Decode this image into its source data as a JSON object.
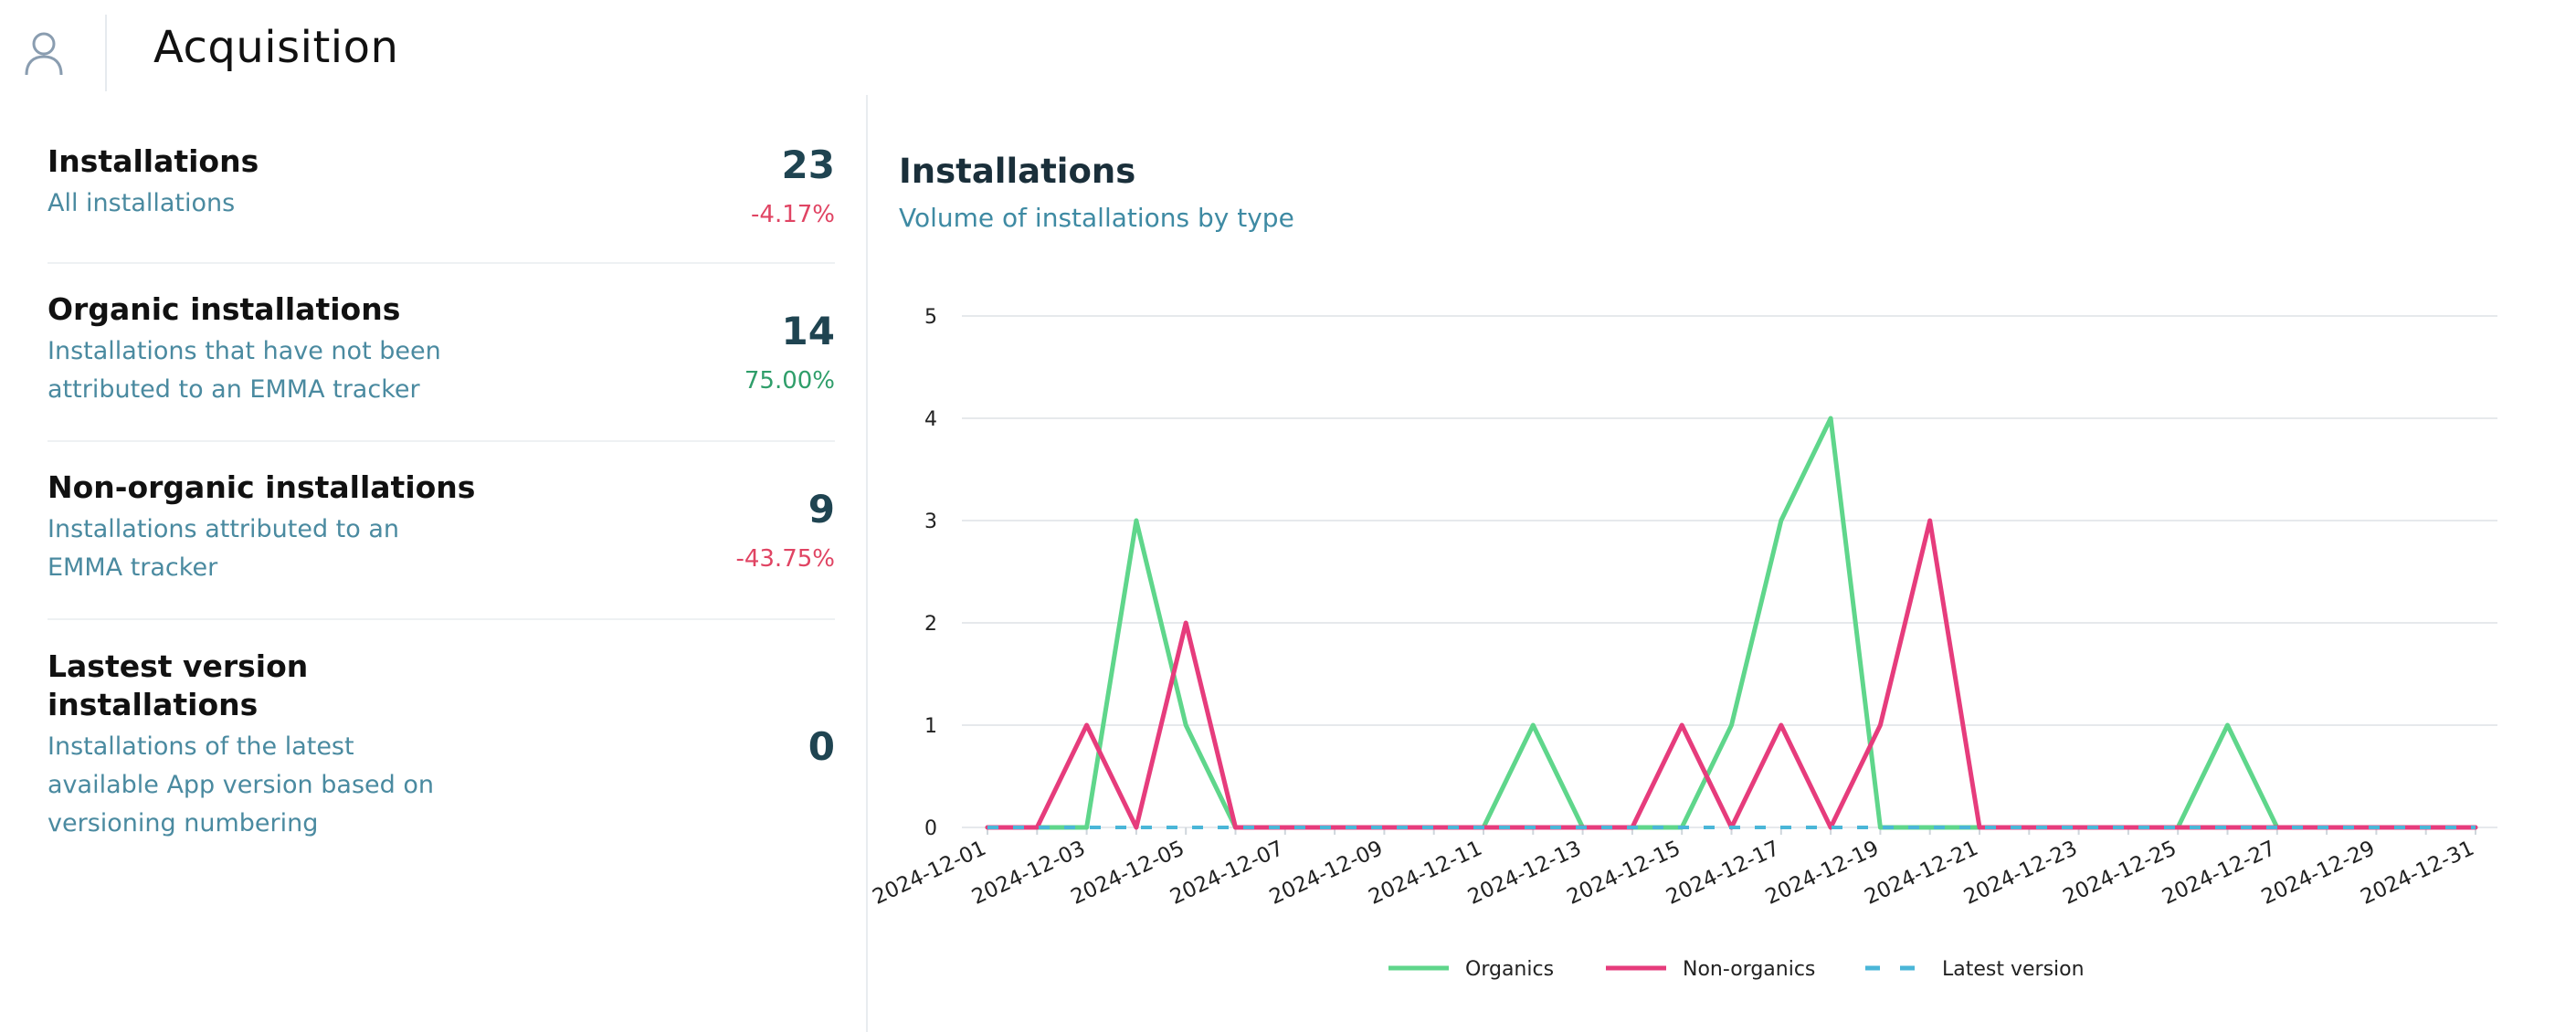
{
  "header": {
    "title": "Acquisition",
    "user_icon": "user-icon"
  },
  "metrics": [
    {
      "name": "Installations",
      "description": [
        "All installations"
      ],
      "value": "23",
      "delta": "-4.17%",
      "delta_color": "#e04463"
    },
    {
      "name": "Organic installations",
      "description": [
        "Installations that have not been",
        "attributed to an EMMA tracker"
      ],
      "value": "14",
      "delta": "75.00%",
      "delta_color": "#2f9e6a"
    },
    {
      "name": "Non-organic installations",
      "description": [
        "Installations attributed to an",
        "EMMA tracker"
      ],
      "value": "9",
      "delta": "-43.75%",
      "delta_color": "#e04463"
    },
    {
      "name": [
        "Lastest version",
        "installations"
      ],
      "description": [
        "Installations of the latest",
        "available App version based on",
        "versioning numbering"
      ],
      "value": "0",
      "delta": ""
    }
  ],
  "chart": {
    "title": "Installations",
    "subtitle": "Volume of installations by type"
  },
  "chart_data": {
    "type": "line",
    "title": "Installations",
    "subtitle": "Volume of installations by type",
    "xlabel": "",
    "ylabel": "",
    "ylim": [
      0,
      5
    ],
    "yticks": [
      0,
      1,
      2,
      3,
      4,
      5
    ],
    "grid": true,
    "legend_position": "bottom",
    "x": [
      "2024-12-01",
      "2024-12-02",
      "2024-12-03",
      "2024-12-04",
      "2024-12-05",
      "2024-12-06",
      "2024-12-07",
      "2024-12-08",
      "2024-12-09",
      "2024-12-10",
      "2024-12-11",
      "2024-12-12",
      "2024-12-13",
      "2024-12-14",
      "2024-12-15",
      "2024-12-16",
      "2024-12-17",
      "2024-12-18",
      "2024-12-19",
      "2024-12-20",
      "2024-12-21",
      "2024-12-22",
      "2024-12-23",
      "2024-12-24",
      "2024-12-25",
      "2024-12-26",
      "2024-12-27",
      "2024-12-28",
      "2024-12-29",
      "2024-12-30",
      "2024-12-31"
    ],
    "x_tick_labels": [
      "2024-12-01",
      "2024-12-03",
      "2024-12-05",
      "2024-12-07",
      "2024-12-09",
      "2024-12-11",
      "2024-12-13",
      "2024-12-15",
      "2024-12-17",
      "2024-12-19",
      "2024-12-21",
      "2024-12-23",
      "2024-12-25",
      "2024-12-27",
      "2024-12-29",
      "2024-12-31"
    ],
    "series": [
      {
        "name": "Organics",
        "color": "#5fd68b",
        "dashed": false,
        "values": [
          0,
          0,
          0,
          3,
          1,
          0,
          0,
          0,
          0,
          0,
          0,
          1,
          0,
          0,
          0,
          1,
          3,
          4,
          0,
          0,
          0,
          0,
          0,
          0,
          0,
          1,
          0,
          0,
          0,
          0,
          0
        ]
      },
      {
        "name": "Non-organics",
        "color": "#e63c7c",
        "dashed": false,
        "values": [
          0,
          0,
          1,
          0,
          2,
          0,
          0,
          0,
          0,
          0,
          0,
          0,
          0,
          0,
          1,
          0,
          1,
          0,
          1,
          3,
          0,
          0,
          0,
          0,
          0,
          0,
          0,
          0,
          0,
          0,
          0
        ]
      },
      {
        "name": "Latest version",
        "color": "#4ab6d8",
        "dashed": true,
        "values": [
          0,
          0,
          0,
          0,
          0,
          0,
          0,
          0,
          0,
          0,
          0,
          0,
          0,
          0,
          0,
          0,
          0,
          0,
          0,
          0,
          0,
          0,
          0,
          0,
          0,
          0,
          0,
          0,
          0,
          0,
          0
        ]
      }
    ]
  }
}
